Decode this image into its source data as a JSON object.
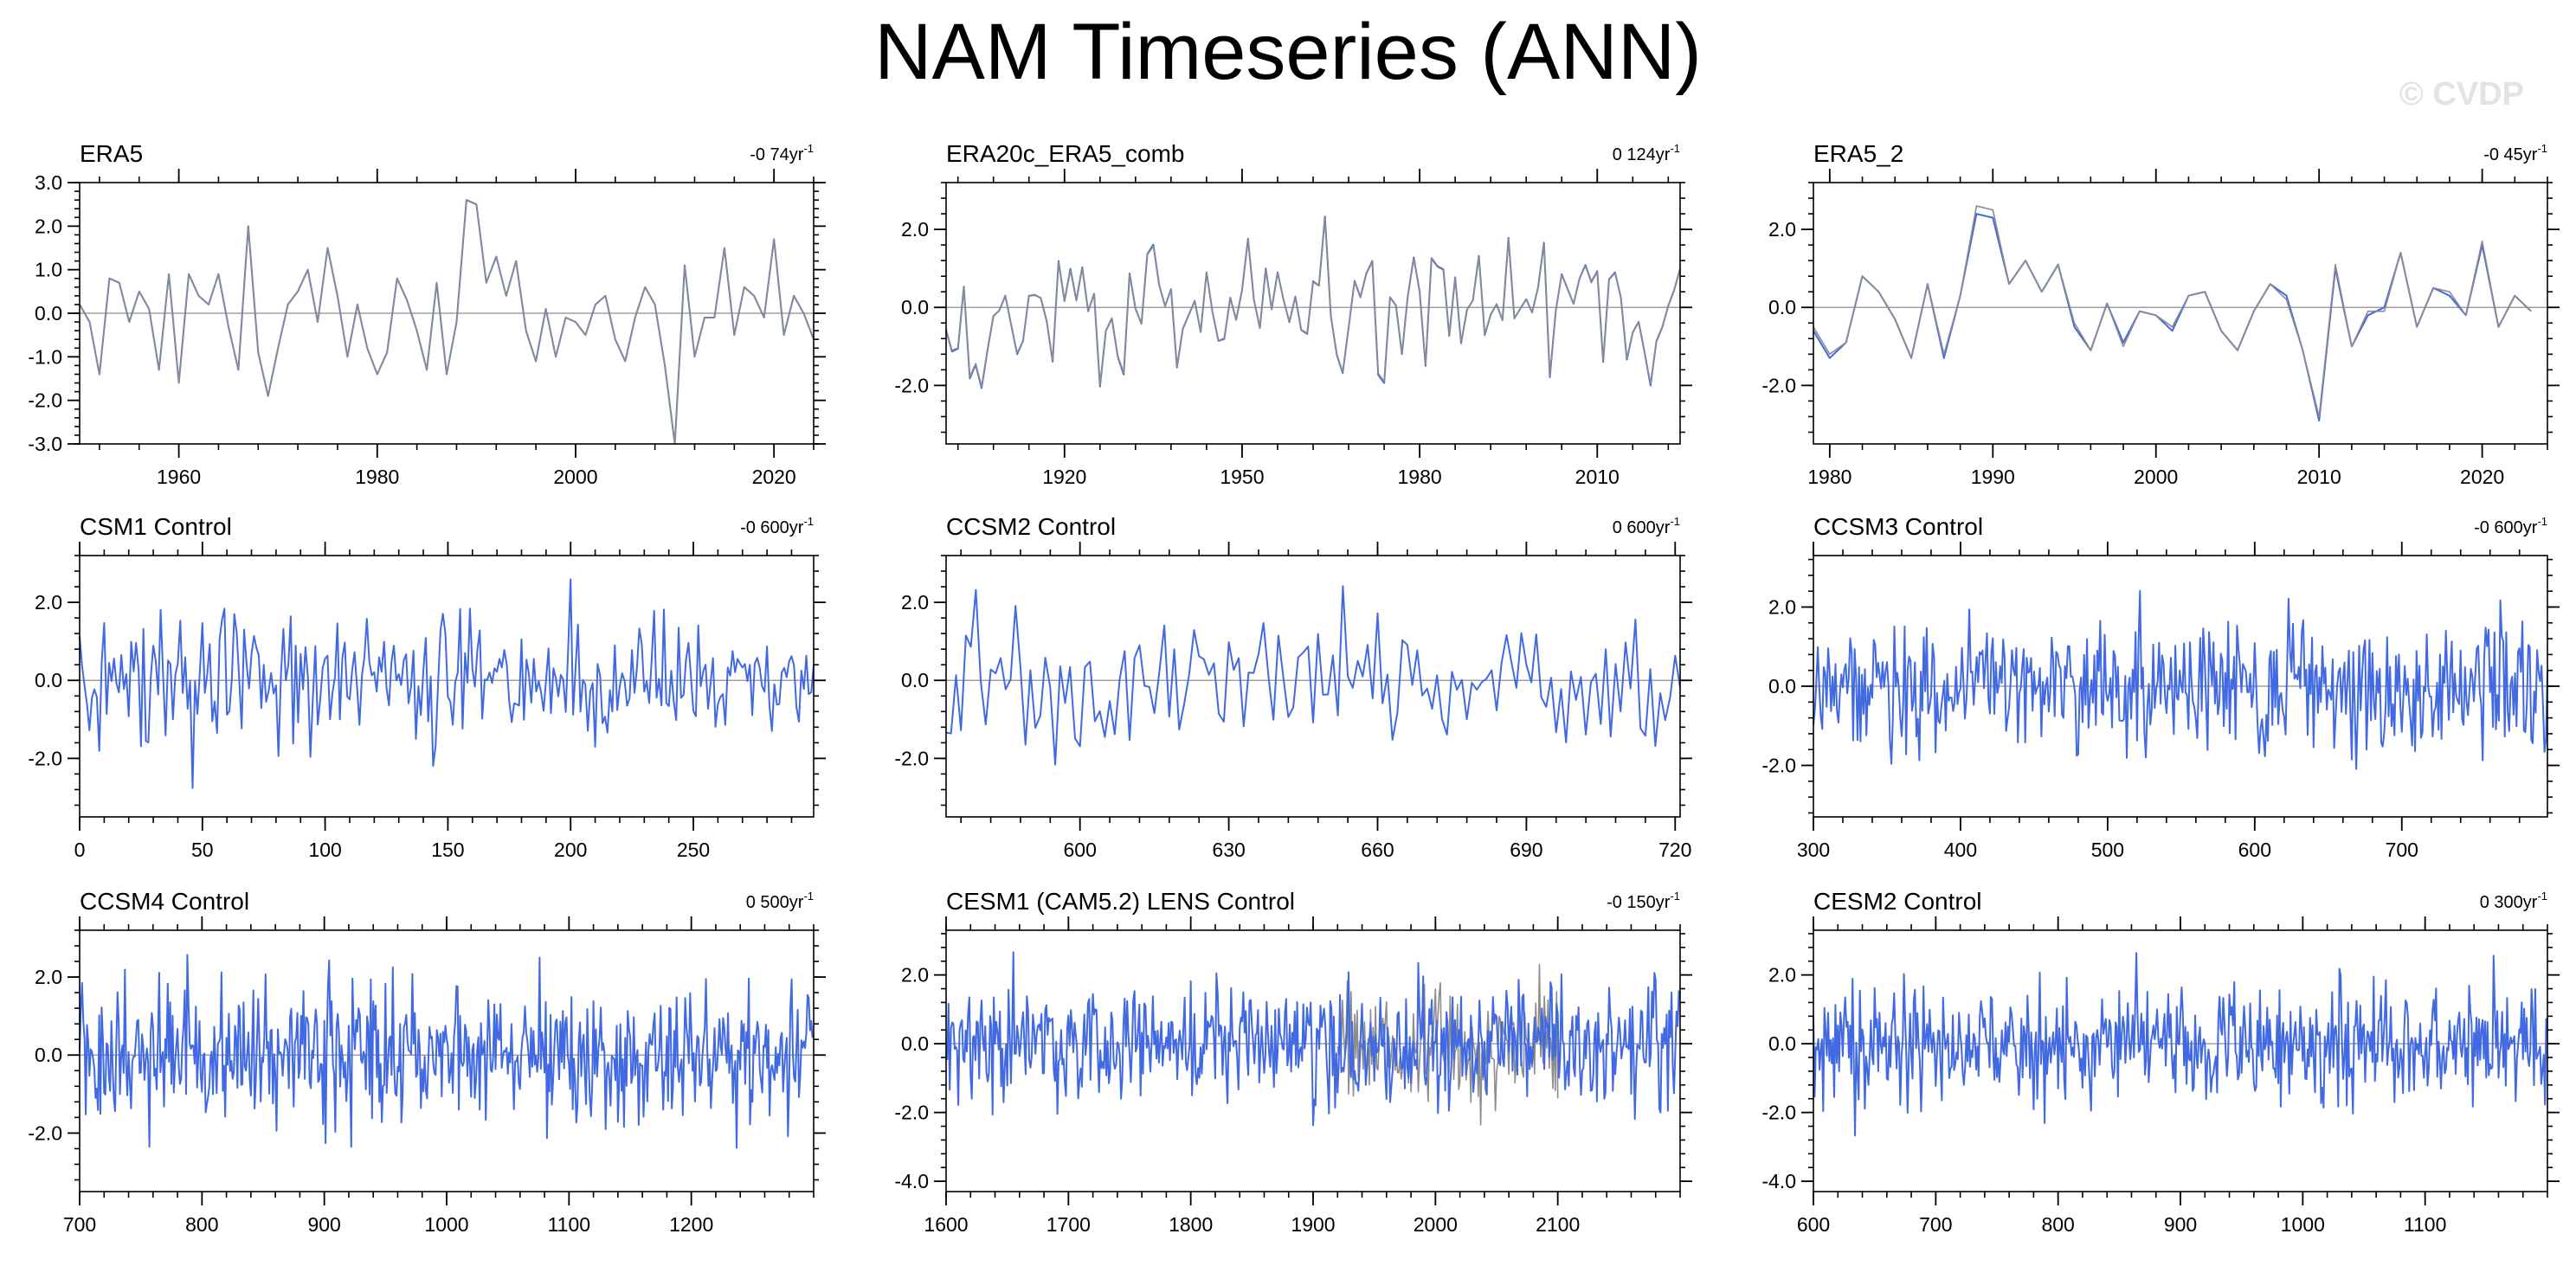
{
  "page": {
    "title": "NAM Timeseries (ANN)",
    "watermark": "© CVDP"
  },
  "colors": {
    "line": "#4169e1",
    "gray": "#8c8c8c",
    "zero": "#a0a0a0",
    "axis": "#000000"
  },
  "chart_data": [
    {
      "type": "line",
      "title": "ERA5",
      "trend": "-0 74yr",
      "sup": "-1",
      "xlim": [
        1950,
        2024
      ],
      "ylim": [
        -3.0,
        3.0
      ],
      "xticks": [
        1960,
        1980,
        2000,
        2020
      ],
      "yticks": [
        -3.0,
        -2.0,
        -1.0,
        0.0,
        1.0,
        2.0,
        3.0
      ],
      "ytick_labels": [
        "-3.0",
        "-2.0",
        "-1.0",
        "0.0",
        "1.0",
        "2.0",
        "3.0"
      ],
      "xtick_labels": [
        "1960",
        "1980",
        "2000",
        "2020"
      ],
      "series": [
        {
          "style": "blue",
          "x_start": 1950,
          "x_step": 1,
          "values": [
            0.2,
            -0.2,
            -1.4,
            0.8,
            0.7,
            -0.2,
            0.5,
            0.1,
            -1.3,
            0.9,
            -1.6,
            0.9,
            0.4,
            0.2,
            0.9,
            -0.3,
            -1.3,
            2.0,
            -0.9,
            -1.9,
            -0.8,
            0.2,
            0.5,
            1.0,
            -0.2,
            1.5,
            0.4,
            -1.0,
            0.2,
            -0.8,
            -1.4,
            -0.9,
            0.8,
            0.3,
            -0.4,
            -1.3,
            0.7,
            -1.4,
            -0.2,
            2.6,
            2.5,
            0.7,
            1.3,
            0.4,
            1.2,
            -0.4,
            -1.1,
            0.1,
            -1.0,
            -0.1,
            -0.2,
            -0.5,
            0.2,
            0.4,
            -0.6,
            -1.1,
            -0.1,
            0.6,
            0.2,
            -1.2,
            -3.0,
            1.1,
            -1.0,
            -0.1,
            -0.1,
            1.5,
            -0.5,
            0.6,
            0.4,
            -0.1,
            1.7,
            -0.5,
            0.4,
            0.0,
            -0.6
          ]
        },
        {
          "style": "gray",
          "x_start": 1950,
          "x_step": 1,
          "values": [
            0.2,
            -0.2,
            -1.4,
            0.8,
            0.7,
            -0.2,
            0.5,
            0.1,
            -1.3,
            0.9,
            -1.6,
            0.9,
            0.4,
            0.2,
            0.9,
            -0.3,
            -1.3,
            2.0,
            -0.9,
            -1.9,
            -0.8,
            0.2,
            0.5,
            1.0,
            -0.2,
            1.5,
            0.4,
            -1.0,
            0.2,
            -0.8,
            -1.4,
            -0.9,
            0.8,
            0.3,
            -0.4,
            -1.3,
            0.7,
            -1.4,
            -0.2,
            2.6,
            2.5,
            0.7,
            1.3,
            0.4,
            1.2,
            -0.4,
            -1.1,
            0.1,
            -1.0,
            -0.1,
            -0.2,
            -0.5,
            0.2,
            0.4,
            -0.6,
            -1.1,
            -0.1,
            0.6,
            0.2,
            -1.2,
            -3.0,
            1.1,
            -1.0,
            -0.1,
            -0.1,
            1.5,
            -0.5,
            0.6,
            0.4,
            -0.1,
            1.7,
            -0.5,
            0.4,
            0.0,
            -0.6
          ]
        }
      ]
    },
    {
      "type": "line",
      "title": "ERA20c_ERA5_comb",
      "trend": "0 124yr",
      "sup": "-1",
      "xlim": [
        1900,
        2024
      ],
      "ylim": [
        -3.5,
        3.2
      ],
      "xticks": [
        1920,
        1950,
        1980,
        2010
      ],
      "yticks": [
        -2.0,
        0.0,
        2.0
      ],
      "ytick_labels": [
        "-2.0",
        "0.0",
        "2.0"
      ],
      "xtick_labels": [
        "1920",
        "1950",
        "1980",
        "2010"
      ],
      "series": [
        {
          "style": "blue",
          "x_start": 1900,
          "x_step": 1,
          "gen": {
            "n": 125,
            "seed": 22,
            "amp": 0.95
          }
        },
        {
          "style": "gray",
          "x_start": 1900,
          "x_step": 1,
          "gen": {
            "n": 125,
            "seed": 22,
            "amp": 0.93
          }
        }
      ]
    },
    {
      "type": "line",
      "title": "ERA5_2",
      "trend": "-0 45yr",
      "sup": "-1",
      "xlim": [
        1979,
        2024
      ],
      "ylim": [
        -3.5,
        3.2
      ],
      "xticks": [
        1980,
        1990,
        2000,
        2010,
        2020
      ],
      "yticks": [
        -2.0,
        0.0,
        2.0
      ],
      "ytick_labels": [
        "-2.0",
        "0.0",
        "2.0"
      ],
      "xtick_labels": [
        "1980",
        "1990",
        "2000",
        "2010",
        "2020"
      ],
      "series": [
        {
          "style": "blue",
          "x_start": 1979,
          "x_step": 1,
          "values": [
            -0.6,
            -1.3,
            -0.9,
            0.8,
            0.4,
            -0.3,
            -1.3,
            0.6,
            -1.3,
            0.3,
            2.4,
            2.3,
            0.6,
            1.2,
            0.4,
            1.1,
            -0.5,
            -1.1,
            0.1,
            -0.9,
            -0.1,
            -0.2,
            -0.6,
            0.3,
            0.4,
            -0.6,
            -1.1,
            -0.1,
            0.6,
            0.3,
            -1.1,
            -2.9,
            1.0,
            -1.0,
            -0.2,
            0.0,
            1.4,
            -0.5,
            0.5,
            0.3,
            -0.2,
            1.6,
            -0.5,
            0.3,
            -0.1
          ]
        },
        {
          "style": "gray",
          "x_start": 1979,
          "x_step": 1,
          "values": [
            -0.5,
            -1.2,
            -0.9,
            0.8,
            0.4,
            -0.3,
            -1.3,
            0.6,
            -1.2,
            0.3,
            2.6,
            2.5,
            0.6,
            1.2,
            0.4,
            1.1,
            -0.4,
            -1.1,
            0.1,
            -1.0,
            -0.1,
            -0.2,
            -0.5,
            0.3,
            0.4,
            -0.6,
            -1.1,
            -0.1,
            0.6,
            0.2,
            -1.1,
            -2.8,
            1.1,
            -1.0,
            -0.1,
            -0.1,
            1.4,
            -0.5,
            0.5,
            0.4,
            -0.2,
            1.7,
            -0.5,
            0.3,
            -0.1
          ]
        }
      ]
    },
    {
      "type": "line",
      "title": "CSM1 Control",
      "trend": "-0 600yr",
      "sup": "-1",
      "xlim": [
        0,
        299
      ],
      "ylim": [
        -3.5,
        3.2
      ],
      "xticks": [
        0,
        50,
        100,
        150,
        200,
        250
      ],
      "yticks": [
        -2.0,
        0.0,
        2.0
      ],
      "ytick_labels": [
        "-2.0",
        "0.0",
        "2.0"
      ],
      "xtick_labels": [
        "0",
        "50",
        "100",
        "150",
        "200",
        "250"
      ],
      "series": [
        {
          "style": "blue",
          "x_start": 0,
          "x_step": 1,
          "gen": {
            "n": 300,
            "seed": 41,
            "amp": 0.95
          }
        }
      ]
    },
    {
      "type": "line",
      "title": "CCSM2 Control",
      "trend": "0 600yr",
      "sup": "-1",
      "xlim": [
        573,
        721
      ],
      "ylim": [
        -3.5,
        3.2
      ],
      "xticks": [
        600,
        630,
        660,
        690,
        720
      ],
      "yticks": [
        -2.0,
        0.0,
        2.0
      ],
      "ytick_labels": [
        "-2.0",
        "0.0",
        "2.0"
      ],
      "xtick_labels": [
        "600",
        "630",
        "660",
        "690",
        "720"
      ],
      "series": [
        {
          "style": "blue",
          "x_start": 573,
          "x_step": 1,
          "gen": {
            "n": 149,
            "seed": 63,
            "amp": 0.9
          }
        }
      ]
    },
    {
      "type": "line",
      "title": "CCSM3 Control",
      "trend": "-0 600yr",
      "sup": "-1",
      "xlim": [
        300,
        799
      ],
      "ylim": [
        -3.3,
        3.3
      ],
      "xticks": [
        300,
        400,
        500,
        600,
        700
      ],
      "yticks": [
        -2.0,
        0.0,
        2.0
      ],
      "ytick_labels": [
        "-2.0",
        "0.0",
        "2.0"
      ],
      "xtick_labels": [
        "300",
        "400",
        "500",
        "600",
        "700"
      ],
      "series": [
        {
          "style": "blue",
          "x_start": 300,
          "x_step": 1,
          "gen": {
            "n": 500,
            "seed": 87,
            "amp": 0.85
          }
        }
      ]
    },
    {
      "type": "line",
      "title": "CCSM4 Control",
      "trend": "0 500yr",
      "sup": "-1",
      "xlim": [
        700,
        1300
      ],
      "ylim": [
        -3.5,
        3.2
      ],
      "xticks": [
        700,
        800,
        900,
        1000,
        1100,
        1200
      ],
      "yticks": [
        -2.0,
        0.0,
        2.0
      ],
      "ytick_labels": [
        "-2.0",
        "0.0",
        "2.0"
      ],
      "xtick_labels": [
        "700",
        "800",
        "900",
        "1000",
        "1100",
        "1200"
      ],
      "series": [
        {
          "style": "blue",
          "x_start": 700,
          "x_step": 1,
          "gen": {
            "n": 600,
            "seed": 105,
            "amp": 0.9
          }
        }
      ]
    },
    {
      "type": "line",
      "title": "CESM1 (CAM5.2) LENS Control",
      "trend": "-0 150yr",
      "sup": "-1",
      "xlim": [
        1600,
        2200
      ],
      "ylim": [
        -4.3,
        3.3
      ],
      "xticks": [
        1600,
        1700,
        1800,
        1900,
        2000,
        2100
      ],
      "yticks": [
        -4.0,
        -2.0,
        0.0,
        2.0
      ],
      "ytick_labels": [
        "-4.0",
        "-2.0",
        "0.0",
        "2.0"
      ],
      "xtick_labels": [
        "1600",
        "1700",
        "1800",
        "1900",
        "2000",
        "2100"
      ],
      "series": [
        {
          "style": "gray",
          "x_start": 1920,
          "x_step": 1,
          "gen": {
            "n": 181,
            "seed": 140,
            "amp": 0.9
          }
        },
        {
          "style": "blue",
          "x_start": 1600,
          "x_step": 1,
          "gen": {
            "n": 600,
            "seed": 129,
            "amp": 0.9
          }
        }
      ]
    },
    {
      "type": "line",
      "title": "CESM2 Control",
      "trend": "0 300yr",
      "sup": "-1",
      "xlim": [
        600,
        1200
      ],
      "ylim": [
        -4.3,
        3.3
      ],
      "xticks": [
        600,
        700,
        800,
        900,
        1000,
        1100
      ],
      "yticks": [
        -4.0,
        -2.0,
        0.0,
        2.0
      ],
      "ytick_labels": [
        "-4.0",
        "-2.0",
        "0.0",
        "2.0"
      ],
      "xtick_labels": [
        "600",
        "700",
        "800",
        "900",
        "1000",
        "1100"
      ],
      "series": [
        {
          "style": "blue",
          "x_start": 600,
          "x_step": 1,
          "gen": {
            "n": 600,
            "seed": 157,
            "amp": 0.9
          }
        }
      ]
    }
  ]
}
